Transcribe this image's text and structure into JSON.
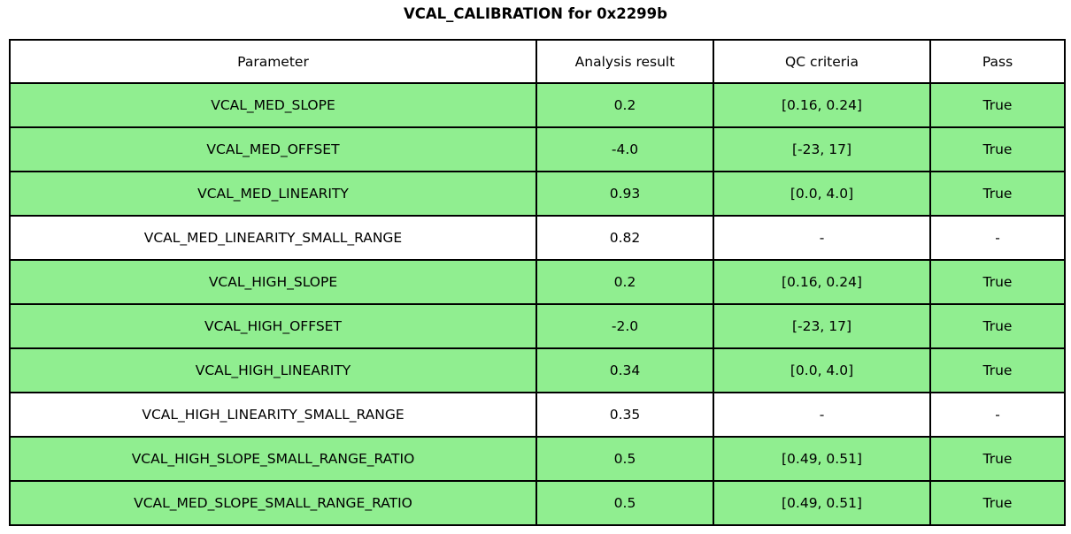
{
  "colors": {
    "row_pass_green": "#90ee90",
    "row_neutral": "#ffffff",
    "border": "#000000",
    "text": "#000000"
  },
  "chart_data": {
    "type": "table",
    "title": "VCAL_CALIBRATION for 0x2299b",
    "columns": [
      "Parameter",
      "Analysis result",
      "QC criteria",
      "Pass"
    ],
    "rows": [
      [
        "VCAL_MED_SLOPE",
        "0.2",
        "[0.16, 0.24]",
        "True"
      ],
      [
        "VCAL_MED_OFFSET",
        "-4.0",
        "[-23, 17]",
        "True"
      ],
      [
        "VCAL_MED_LINEARITY",
        "0.93",
        "[0.0, 4.0]",
        "True"
      ],
      [
        "VCAL_MED_LINEARITY_SMALL_RANGE",
        "0.82",
        "-",
        "-"
      ],
      [
        "VCAL_HIGH_SLOPE",
        "0.2",
        "[0.16, 0.24]",
        "True"
      ],
      [
        "VCAL_HIGH_OFFSET",
        "-2.0",
        "[-23, 17]",
        "True"
      ],
      [
        "VCAL_HIGH_LINEARITY",
        "0.34",
        "[0.0, 4.0]",
        "True"
      ],
      [
        "VCAL_HIGH_LINEARITY_SMALL_RANGE",
        "0.35",
        "-",
        "-"
      ],
      [
        "VCAL_HIGH_SLOPE_SMALL_RANGE_RATIO",
        "0.5",
        "[0.49, 0.51]",
        "True"
      ],
      [
        "VCAL_MED_SLOPE_SMALL_RANGE_RATIO",
        "0.5",
        "[0.49, 0.51]",
        "True"
      ]
    ],
    "row_highlight": [
      true,
      true,
      true,
      false,
      true,
      true,
      true,
      false,
      true,
      true
    ],
    "legend_position": "none",
    "grid": true
  }
}
